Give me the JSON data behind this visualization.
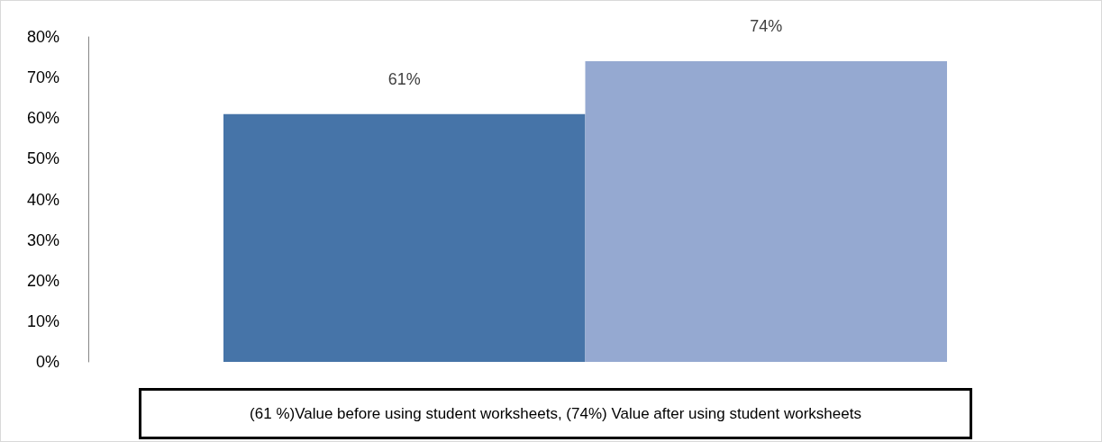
{
  "chart_data": {
    "type": "bar",
    "categories": [
      null,
      null
    ],
    "series": [
      {
        "values": [
          61,
          74
        ],
        "colors": [
          "#4674a8",
          "#95a9d1"
        ],
        "value_labels": [
          "61%",
          "74%"
        ]
      }
    ],
    "ylim": [
      0,
      80
    ],
    "yticks": [
      {
        "value": 0,
        "label": "0%"
      },
      {
        "value": 10,
        "label": "10%"
      },
      {
        "value": 20,
        "label": "20%"
      },
      {
        "value": 30,
        "label": "30%"
      },
      {
        "value": 40,
        "label": "40%"
      },
      {
        "value": 50,
        "label": "50%"
      },
      {
        "value": 60,
        "label": "60%"
      },
      {
        "value": 70,
        "label": "70%"
      },
      {
        "value": 80,
        "label": "80%"
      }
    ],
    "grid": false,
    "annotations": [
      "(61 %)Value before using student worksheets, (74%) Value after using student worksheets"
    ]
  }
}
